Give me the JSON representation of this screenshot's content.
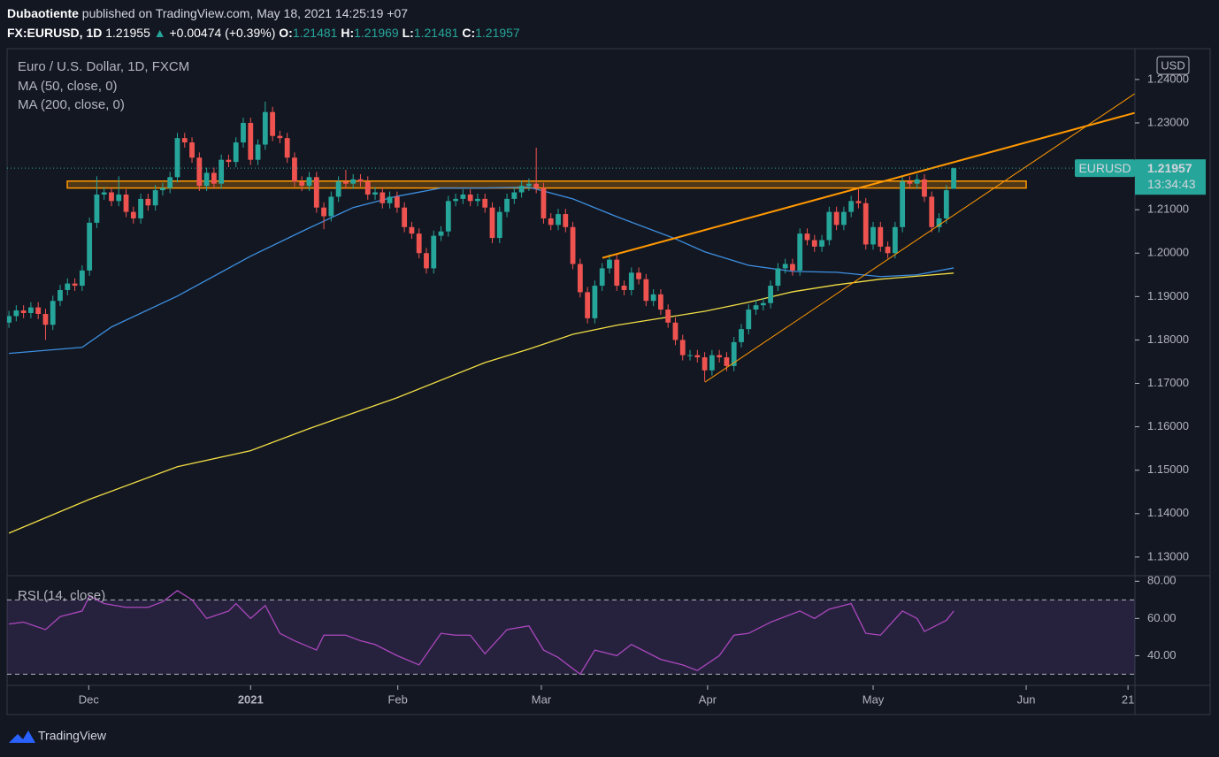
{
  "header": {
    "author": "Dubaotiente",
    "published": "published on TradingView.com, May 18, 2021 14:25:19 +07",
    "symbol": "FX:EURUSD, 1D",
    "price": "1.21955",
    "arrow": "▲",
    "change": "+0.00474 (+0.39%)",
    "o_label": "O:",
    "o": "1.21481",
    "h_label": "H:",
    "h": "1.21969",
    "l_label": "L:",
    "l": "1.21481",
    "c_label": "C:",
    "c": "1.21957"
  },
  "price_tag": {
    "symbol": "EURUSD",
    "price": "1.21957",
    "countdown": "13:34:43"
  },
  "brand": "TradingView",
  "chart_data": [
    {
      "type": "candlestick",
      "title": "Euro / U.S. Dollar, 1D, FXCM",
      "axis_unit": "USD",
      "up_color": "#26a69a",
      "down_color": "#ef5350",
      "open": [
        1.184,
        1.1855,
        1.1868,
        1.1862,
        1.1875,
        1.186,
        1.1835,
        1.189,
        1.1915,
        1.193,
        1.1925,
        1.196,
        1.207,
        1.2135,
        1.214,
        1.212,
        1.2135,
        1.2095,
        1.208,
        1.2125,
        1.211,
        1.2145,
        1.215,
        1.2175,
        1.2265,
        1.2255,
        1.222,
        1.2155,
        1.2185,
        1.216,
        1.2215,
        1.221,
        1.2255,
        1.23,
        1.2215,
        1.225,
        1.2325,
        1.227,
        1.2265,
        1.222,
        1.2165,
        1.2155,
        1.2175,
        1.2105,
        1.2085,
        1.213,
        1.2165,
        1.216,
        1.217,
        1.2165,
        1.2135,
        1.214,
        1.2115,
        1.213,
        1.2105,
        1.206,
        1.2045,
        1.2,
        1.1965,
        1.204,
        1.205,
        1.212,
        1.2125,
        1.2135,
        1.212,
        1.2125,
        1.2105,
        1.2035,
        1.2095,
        1.2125,
        1.214,
        1.2155,
        1.216,
        1.215,
        1.208,
        1.2065,
        1.209,
        1.206,
        1.1975,
        1.191,
        1.185,
        1.1925,
        1.1965,
        1.1985,
        1.1925,
        1.1915,
        1.1955,
        1.194,
        1.189,
        1.1905,
        1.187,
        1.184,
        1.18,
        1.1765,
        1.1765,
        1.176,
        1.173,
        1.1765,
        1.176,
        1.174,
        1.1795,
        1.1825,
        1.187,
        1.188,
        1.1885,
        1.1925,
        1.1965,
        1.1975,
        1.196,
        1.2045,
        1.203,
        1.2015,
        1.203,
        1.2095,
        1.2065,
        1.2095,
        1.212,
        1.2115,
        1.202,
        1.206,
        1.2015,
        1.2,
        1.206,
        1.2165,
        1.216,
        1.217,
        1.213,
        1.206,
        1.208,
        1.21481
      ],
      "high": [
        1.1867,
        1.188,
        1.188,
        1.1887,
        1.1887,
        1.1872,
        1.1902,
        1.1927,
        1.1942,
        1.1942,
        1.1972,
        1.2082,
        1.2177,
        1.2152,
        1.2152,
        1.2177,
        1.2147,
        1.2107,
        1.2137,
        1.2137,
        1.2157,
        1.2162,
        1.2187,
        1.2277,
        1.2277,
        1.2267,
        1.2232,
        1.2197,
        1.2197,
        1.2227,
        1.2227,
        1.2267,
        1.2312,
        1.2312,
        1.2262,
        1.2349,
        1.2337,
        1.2282,
        1.2277,
        1.2232,
        1.2177,
        1.2187,
        1.2187,
        1.2117,
        1.2142,
        1.2177,
        1.2192,
        1.2182,
        1.2182,
        1.2177,
        1.2152,
        1.2152,
        1.2142,
        1.2142,
        1.2117,
        1.2072,
        1.2057,
        1.2012,
        1.2052,
        1.2062,
        1.2132,
        1.2137,
        1.2147,
        1.2147,
        1.2137,
        1.2137,
        1.2117,
        1.2107,
        1.2137,
        1.2152,
        1.2167,
        1.2172,
        1.2243,
        1.2162,
        1.2092,
        1.2102,
        1.2102,
        1.2072,
        1.1987,
        1.1922,
        1.1937,
        1.1977,
        1.1997,
        1.1997,
        1.1937,
        1.1967,
        1.1967,
        1.1952,
        1.1917,
        1.1917,
        1.1882,
        1.1852,
        1.1812,
        1.1777,
        1.1777,
        1.1772,
        1.1777,
        1.1777,
        1.1772,
        1.1807,
        1.1837,
        1.1882,
        1.1892,
        1.1897,
        1.1937,
        1.1977,
        1.1987,
        1.1987,
        1.2057,
        1.2057,
        1.2042,
        1.2042,
        1.2107,
        1.2107,
        1.2107,
        1.2132,
        1.2147,
        1.2127,
        1.2072,
        1.2072,
        1.2027,
        1.2072,
        1.2177,
        1.2177,
        1.2182,
        1.2182,
        1.2142,
        1.2092,
        1.2157,
        1.21969
      ],
      "low": [
        1.1828,
        1.1843,
        1.185,
        1.185,
        1.1848,
        1.18,
        1.1823,
        1.1878,
        1.1903,
        1.1913,
        1.1913,
        1.1948,
        1.2058,
        1.2123,
        1.2108,
        1.2108,
        1.2083,
        1.2068,
        1.2068,
        1.2098,
        1.2098,
        1.2133,
        1.2138,
        1.2163,
        1.2243,
        1.2208,
        1.2143,
        1.2143,
        1.2148,
        1.2148,
        1.2198,
        1.2198,
        1.2243,
        1.2203,
        1.2203,
        1.2238,
        1.2258,
        1.2253,
        1.2208,
        1.2153,
        1.2143,
        1.2143,
        1.2093,
        1.2055,
        1.2073,
        1.2118,
        1.2148,
        1.2148,
        1.2153,
        1.2123,
        1.2123,
        1.2103,
        1.2103,
        1.2093,
        1.2048,
        1.2033,
        1.1988,
        1.1953,
        1.1953,
        1.2028,
        1.2038,
        1.2108,
        1.2113,
        1.2108,
        1.2108,
        1.2093,
        1.2023,
        1.2023,
        1.2083,
        1.2113,
        1.2128,
        1.2143,
        1.2138,
        1.2068,
        1.2053,
        1.2053,
        1.2048,
        1.1963,
        1.1898,
        1.1838,
        1.1838,
        1.1913,
        1.1953,
        1.1913,
        1.1903,
        1.1903,
        1.1928,
        1.1878,
        1.1878,
        1.1858,
        1.1828,
        1.1788,
        1.1753,
        1.1753,
        1.1748,
        1.1704,
        1.1718,
        1.1748,
        1.1728,
        1.1728,
        1.1783,
        1.1813,
        1.1858,
        1.1868,
        1.1873,
        1.1913,
        1.1953,
        1.1948,
        1.1948,
        1.2018,
        1.2003,
        1.2003,
        1.2018,
        1.2053,
        1.2053,
        1.2083,
        1.2103,
        1.2008,
        1.2008,
        1.2003,
        1.1988,
        1.1988,
        1.2048,
        1.2148,
        1.2148,
        1.2118,
        1.2048,
        1.2048,
        1.2068,
        1.21481
      ],
      "close": [
        1.1855,
        1.1868,
        1.1862,
        1.1875,
        1.186,
        1.1835,
        1.189,
        1.1915,
        1.193,
        1.1925,
        1.196,
        1.207,
        1.2135,
        1.214,
        1.212,
        1.2135,
        1.2095,
        1.208,
        1.2125,
        1.211,
        1.2145,
        1.215,
        1.2175,
        1.2265,
        1.2255,
        1.222,
        1.2155,
        1.2185,
        1.216,
        1.2215,
        1.221,
        1.2255,
        1.23,
        1.2215,
        1.225,
        1.2325,
        1.227,
        1.2265,
        1.222,
        1.2165,
        1.2155,
        1.2175,
        1.2105,
        1.2085,
        1.213,
        1.2165,
        1.216,
        1.217,
        1.2165,
        1.2135,
        1.214,
        1.2115,
        1.213,
        1.2105,
        1.206,
        1.2045,
        1.2,
        1.1965,
        1.204,
        1.205,
        1.212,
        1.2125,
        1.2135,
        1.212,
        1.2125,
        1.2105,
        1.2035,
        1.2095,
        1.2125,
        1.214,
        1.2155,
        1.216,
        1.215,
        1.208,
        1.2065,
        1.209,
        1.206,
        1.1975,
        1.191,
        1.185,
        1.1925,
        1.1965,
        1.1985,
        1.1925,
        1.1915,
        1.1955,
        1.194,
        1.189,
        1.1905,
        1.187,
        1.184,
        1.18,
        1.1765,
        1.1765,
        1.176,
        1.173,
        1.1765,
        1.176,
        1.174,
        1.1795,
        1.1825,
        1.187,
        1.188,
        1.1885,
        1.1925,
        1.1965,
        1.1975,
        1.196,
        1.2045,
        1.203,
        1.2015,
        1.203,
        1.2095,
        1.2065,
        1.2095,
        1.212,
        1.2115,
        1.202,
        1.206,
        1.2015,
        1.2,
        1.206,
        1.2165,
        1.216,
        1.217,
        1.213,
        1.206,
        1.208,
        1.2145,
        1.21957
      ],
      "xlim": [
        -0.25,
        153.75
      ],
      "ylim": [
        1.1257,
        1.2469
      ],
      "yticks": [
        {
          "value": 1.24,
          "label": "1.24000"
        },
        {
          "value": 1.23,
          "label": "1.23000"
        },
        {
          "value": 1.22,
          "label": "1.22000"
        },
        {
          "value": 1.21,
          "label": "1.21000"
        },
        {
          "value": 1.2,
          "label": "1.20000"
        },
        {
          "value": 1.19,
          "label": "1.19000"
        },
        {
          "value": 1.18,
          "label": "1.18000"
        },
        {
          "value": 1.17,
          "label": "1.17000"
        },
        {
          "value": 1.16,
          "label": "1.16000"
        },
        {
          "value": 1.15,
          "label": "1.15000"
        },
        {
          "value": 1.14,
          "label": "1.14000"
        },
        {
          "value": 1.13,
          "label": "1.13000"
        }
      ],
      "series": [
        {
          "name": "MA (50, close, 0)",
          "color": "#3d8fe0",
          "x": [
            0,
            10,
            14,
            23,
            33,
            41,
            47,
            53,
            59,
            65,
            71,
            77,
            83,
            91,
            95,
            101,
            107,
            113,
            119,
            124,
            129
          ],
          "values": [
            1.1769,
            1.1783,
            1.183,
            1.1901,
            1.1993,
            1.2058,
            1.2105,
            1.2131,
            1.215,
            1.215,
            1.2152,
            1.2125,
            1.2084,
            1.2033,
            1.2003,
            1.1972,
            1.1958,
            1.1956,
            1.1946,
            1.195,
            1.1966
          ]
        },
        {
          "name": "MA (200, close, 0)",
          "color": "#f2de44",
          "x": [
            0,
            11,
            23,
            33,
            41,
            53,
            65,
            71,
            77,
            83,
            89,
            95,
            101,
            107,
            113,
            119,
            129
          ],
          "values": [
            1.1355,
            1.1433,
            1.1508,
            1.1545,
            1.1596,
            1.1667,
            1.1748,
            1.1779,
            1.1813,
            1.1834,
            1.185,
            1.1866,
            1.1887,
            1.1911,
            1.1927,
            1.194,
            1.1954
          ]
        }
      ],
      "drawings": [
        {
          "kind": "trend",
          "color": "#ff9800",
          "width": 2,
          "x": [
            81.04,
            153.7
          ],
          "values": [
            1.1989,
            1.2323
          ]
        },
        {
          "kind": "trend",
          "color": "#ff9800",
          "width": 1,
          "x": [
            95.05,
            153.7
          ],
          "values": [
            1.1703,
            1.2367
          ]
        },
        {
          "kind": "zone",
          "color": "#ff9800",
          "x": [
            7.97,
            138.9
          ],
          "values": [
            1.215,
            1.2166
          ]
        }
      ]
    },
    {
      "type": "line",
      "title": "RSI (14, close)",
      "color": "#ab47bc",
      "x": [
        0,
        2,
        5,
        7,
        10,
        11,
        13,
        16,
        19,
        21,
        23,
        25,
        27,
        30,
        31,
        33,
        35,
        37,
        39,
        42,
        43,
        46,
        48,
        50,
        53,
        56,
        59,
        61,
        63,
        65,
        68,
        71,
        73,
        75,
        78,
        80,
        83,
        85,
        89,
        92,
        94,
        97,
        99,
        101,
        104,
        108,
        110,
        112,
        115,
        117,
        119,
        122,
        124,
        125,
        128,
        129
      ],
      "values": [
        57,
        58,
        54,
        61,
        64,
        72,
        68,
        66,
        66,
        69,
        75,
        70,
        60,
        64,
        68,
        60,
        67,
        52,
        48,
        43,
        51,
        51,
        48,
        46,
        40,
        35,
        52,
        51,
        51,
        41,
        54,
        56,
        43,
        39,
        30,
        43,
        40,
        46,
        38,
        35,
        32,
        40,
        51,
        52,
        58,
        64,
        60,
        65,
        68,
        52,
        51,
        64,
        60,
        53,
        59,
        64
      ],
      "bands": [
        70,
        30
      ],
      "xlim": [
        -0.25,
        153.75
      ],
      "ylim": [
        24,
        83
      ],
      "yticks": [
        {
          "value": 80,
          "label": "80.00"
        },
        {
          "value": 60,
          "label": "60.00"
        },
        {
          "value": 40,
          "label": "40.00"
        }
      ],
      "xticks": [
        {
          "value": 10.9,
          "label": "Dec"
        },
        {
          "value": 33,
          "label": "2021"
        },
        {
          "value": 53.1,
          "label": "Feb"
        },
        {
          "value": 72.7,
          "label": "Mar"
        },
        {
          "value": 95.4,
          "label": "Apr"
        },
        {
          "value": 118,
          "label": "May"
        },
        {
          "value": 138.9,
          "label": "Jun"
        },
        {
          "value": 152.8,
          "label": "21"
        }
      ]
    }
  ]
}
